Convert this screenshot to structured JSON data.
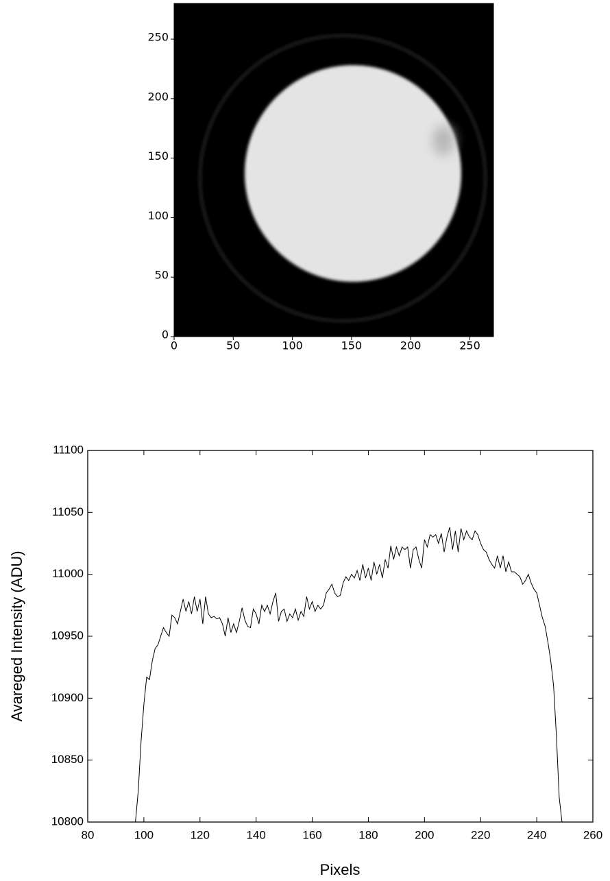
{
  "chart_data": [
    {
      "type": "image",
      "xlim": [
        0,
        270
      ],
      "ylim": [
        0,
        280
      ],
      "xticks": [
        0,
        50,
        100,
        150,
        200,
        250
      ],
      "yticks": [
        0,
        50,
        100,
        150,
        200,
        250
      ]
    },
    {
      "type": "line",
      "x_label": "Pixels",
      "y_label": "Avareged Intensity (ADU)",
      "color": "#000000",
      "xlim": [
        80,
        260
      ],
      "ylim": [
        10800,
        11100
      ],
      "xticks": [
        80,
        100,
        120,
        140,
        160,
        180,
        200,
        220,
        240,
        260
      ],
      "yticks": [
        10800,
        10850,
        10900,
        10950,
        11000,
        11050,
        11100
      ],
      "x": [
        97,
        98,
        99,
        100,
        101,
        102,
        103,
        104,
        105,
        106,
        107,
        108,
        109,
        110,
        111,
        112,
        113,
        114,
        115,
        116,
        117,
        118,
        119,
        120,
        121,
        122,
        123,
        124,
        125,
        126,
        127,
        128,
        129,
        130,
        131,
        132,
        133,
        134,
        135,
        136,
        137,
        138,
        139,
        140,
        141,
        142,
        143,
        144,
        145,
        146,
        147,
        148,
        149,
        150,
        151,
        152,
        153,
        154,
        155,
        156,
        157,
        158,
        159,
        160,
        161,
        162,
        163,
        164,
        165,
        166,
        167,
        168,
        169,
        170,
        171,
        172,
        173,
        174,
        175,
        176,
        177,
        178,
        179,
        180,
        181,
        182,
        183,
        184,
        185,
        186,
        187,
        188,
        189,
        190,
        191,
        192,
        193,
        194,
        195,
        196,
        197,
        198,
        199,
        200,
        201,
        202,
        203,
        204,
        205,
        206,
        207,
        208,
        209,
        210,
        211,
        212,
        213,
        214,
        215,
        216,
        217,
        218,
        219,
        220,
        221,
        222,
        223,
        224,
        225,
        226,
        227,
        228,
        229,
        230,
        231,
        232,
        233,
        234,
        235,
        236,
        237,
        238,
        239,
        240,
        241,
        242,
        243,
        244,
        245,
        246,
        247,
        248,
        249
      ],
      "values": [
        10800,
        10825,
        10865,
        10895,
        10917,
        10915,
        10930,
        10940,
        10943,
        10950,
        10957,
        10953,
        10950,
        10967,
        10965,
        10960,
        10970,
        10980,
        10970,
        10978,
        10968,
        10982,
        10970,
        10980,
        10960,
        10982,
        10968,
        10965,
        10966,
        10964,
        10965,
        10960,
        10950,
        10965,
        10953,
        10960,
        10953,
        10962,
        10973,
        10963,
        10958,
        10957,
        10972,
        10968,
        10960,
        10975,
        10970,
        10975,
        10968,
        10978,
        10985,
        10962,
        10970,
        10972,
        10962,
        10968,
        10965,
        10972,
        10963,
        10970,
        10966,
        10982,
        10972,
        10978,
        10970,
        10975,
        10972,
        10975,
        10985,
        10988,
        10992,
        10985,
        10982,
        10983,
        10993,
        10998,
        10995,
        11000,
        10997,
        11003,
        10995,
        11008,
        10997,
        11005,
        10995,
        11010,
        11000,
        11008,
        10997,
        11012,
        11005,
        11023,
        11012,
        11022,
        11015,
        11022,
        11020,
        11022,
        11005,
        11020,
        11022,
        11012,
        11005,
        11028,
        11022,
        11032,
        11030,
        11032,
        11025,
        11033,
        11018,
        11030,
        11038,
        11020,
        11035,
        11018,
        11037,
        11028,
        11035,
        11030,
        11028,
        11035,
        11032,
        11025,
        11020,
        11018,
        11012,
        11008,
        11005,
        11015,
        11005,
        11015,
        11002,
        11010,
        11002,
        11002,
        11000,
        10998,
        10992,
        10995,
        11000,
        10993,
        10988,
        10985,
        10975,
        10965,
        10958,
        10945,
        10930,
        10910,
        10870,
        10820,
        10800
      ]
    }
  ]
}
